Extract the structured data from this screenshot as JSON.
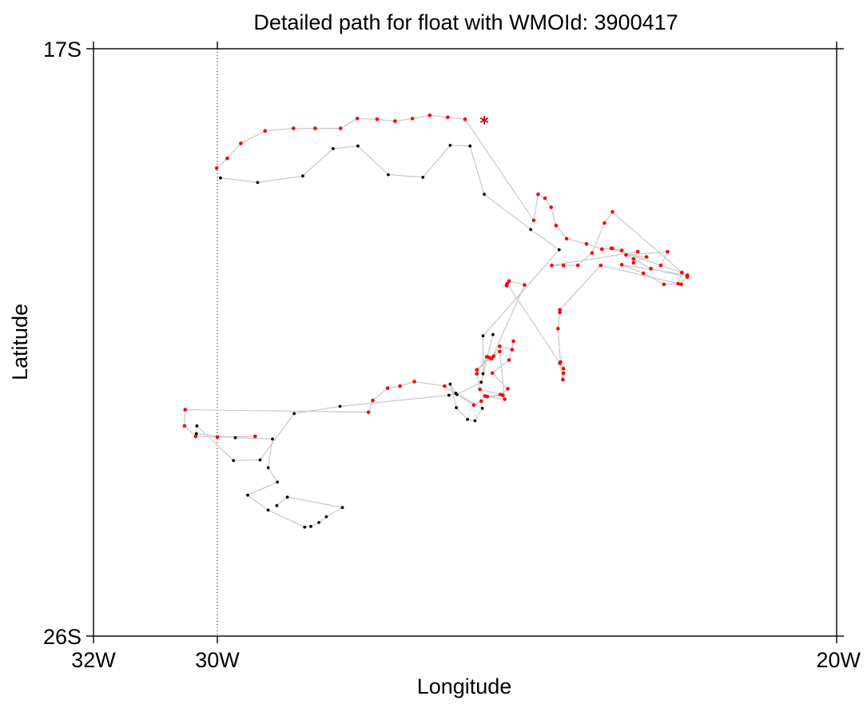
{
  "chart_data": {
    "type": "scatter",
    "title": "Detailed path for float with WMOId: 3900417",
    "xlabel": "Longitude",
    "ylabel": "Latitude",
    "xlim": [
      -32,
      -20
    ],
    "ylim": [
      -26,
      -17
    ],
    "x_ticks": [
      {
        "value": -32,
        "label": "32W"
      },
      {
        "value": -30,
        "label": "30W"
      },
      {
        "value": -20,
        "label": "20W"
      }
    ],
    "y_ticks": [
      {
        "value": -17,
        "label": "17S"
      },
      {
        "value": -26,
        "label": "26S"
      }
    ],
    "reference_line": {
      "lon": -30,
      "style": "dotted"
    },
    "grid": false,
    "path_color": "#c8c8c8",
    "series": [
      {
        "color": "#000000",
        "points": [
          [
            -29.95,
            -18.98
          ],
          [
            -29.35,
            -19.05
          ],
          [
            -28.62,
            -18.95
          ],
          [
            -28.13,
            -18.53
          ],
          [
            -27.73,
            -18.49
          ],
          [
            -27.24,
            -18.93
          ],
          [
            -26.68,
            -18.97
          ],
          [
            -26.24,
            -18.48
          ],
          [
            -25.92,
            -18.49
          ],
          [
            -25.69,
            -19.23
          ],
          [
            -24.94,
            -19.77
          ],
          [
            -24.48,
            -20.08
          ],
          [
            -25.71,
            -21.4
          ],
          [
            -25.71,
            -21.98
          ],
          [
            -25.55,
            -21.38
          ],
          [
            -25.74,
            -22.11
          ],
          [
            -26.13,
            -22.3
          ],
          [
            -26.24,
            -22.14
          ],
          [
            -26.14,
            -22.5
          ],
          [
            -25.96,
            -22.68
          ],
          [
            -25.84,
            -22.7
          ],
          [
            -25.72,
            -22.51
          ],
          [
            -26.15,
            -22.28
          ],
          [
            -26.26,
            -22.31
          ],
          [
            -28.02,
            -22.48
          ],
          [
            -28.76,
            -22.59
          ],
          [
            -29.31,
            -23.3
          ],
          [
            -29.74,
            -23.31
          ],
          [
            -30.33,
            -22.78
          ],
          [
            -30.34,
            -22.9
          ],
          [
            -29.71,
            -22.96
          ],
          [
            -29.11,
            -22.98
          ],
          [
            -29.18,
            -23.42
          ],
          [
            -29.03,
            -23.64
          ],
          [
            -29.51,
            -23.84
          ],
          [
            -29.18,
            -24.07
          ],
          [
            -28.59,
            -24.33
          ],
          [
            -28.49,
            -24.32
          ],
          [
            -28.36,
            -24.26
          ],
          [
            -28.24,
            -24.17
          ],
          [
            -27.98,
            -24.03
          ],
          [
            -28.87,
            -23.87
          ],
          [
            -29.04,
            -24.0
          ]
        ]
      },
      {
        "color": "#ff0000",
        "points": [
          [
            -30.01,
            -18.83
          ],
          [
            -29.84,
            -18.68
          ],
          [
            -29.62,
            -18.45
          ],
          [
            -29.23,
            -18.26
          ],
          [
            -28.77,
            -18.22
          ],
          [
            -28.42,
            -18.22
          ],
          [
            -28.01,
            -18.22
          ],
          [
            -27.74,
            -18.07
          ],
          [
            -27.42,
            -18.08
          ],
          [
            -27.13,
            -18.11
          ],
          [
            -26.85,
            -18.07
          ],
          [
            -26.57,
            -18.02
          ],
          [
            -26.28,
            -18.05
          ],
          [
            -26.0,
            -18.08
          ],
          [
            -24.89,
            -19.63
          ],
          [
            -24.82,
            -19.23
          ],
          [
            -24.71,
            -19.29
          ],
          [
            -24.61,
            -19.43
          ],
          [
            -24.53,
            -19.71
          ],
          [
            -24.36,
            -19.91
          ],
          [
            -24.04,
            -19.99
          ],
          [
            -23.79,
            -20.07
          ],
          [
            -23.62,
            -20.06
          ],
          [
            -23.47,
            -20.09
          ],
          [
            -23.28,
            -20.22
          ],
          [
            -23.0,
            -20.37
          ],
          [
            -22.41,
            -20.5
          ],
          [
            -23.62,
            -19.5
          ],
          [
            -23.75,
            -19.67
          ],
          [
            -23.95,
            -20.13
          ],
          [
            -24.18,
            -20.32
          ],
          [
            -24.41,
            -20.32
          ],
          [
            -24.6,
            -20.32
          ],
          [
            -23.21,
            -20.11
          ],
          [
            -23.28,
            -20.28
          ],
          [
            -23.07,
            -20.19
          ],
          [
            -23.4,
            -20.16
          ],
          [
            -22.73,
            -20.11
          ],
          [
            -22.84,
            -20.32
          ],
          [
            -23.64,
            -20.06
          ],
          [
            -22.5,
            -20.43
          ],
          [
            -22.56,
            -20.6
          ],
          [
            -22.79,
            -20.61
          ],
          [
            -23.12,
            -20.44
          ],
          [
            -23.47,
            -20.31
          ],
          [
            -22.41,
            -20.47
          ],
          [
            -22.51,
            -20.61
          ],
          [
            -23.81,
            -20.32
          ],
          [
            -24.47,
            -21.0
          ],
          [
            -24.47,
            -21.04
          ],
          [
            -24.5,
            -21.29
          ],
          [
            -24.46,
            -21.8
          ],
          [
            -24.41,
            -21.97
          ],
          [
            -24.42,
            -22.07
          ],
          [
            -24.47,
            -21.82
          ],
          [
            -24.41,
            -21.9
          ],
          [
            -25.32,
            -20.6
          ],
          [
            -25.33,
            -20.63
          ],
          [
            -25.29,
            -20.56
          ],
          [
            -25.04,
            -20.62
          ],
          [
            -25.57,
            -21.75
          ],
          [
            -25.44,
            -21.56
          ],
          [
            -25.24,
            -21.61
          ],
          [
            -25.22,
            -21.48
          ],
          [
            -25.29,
            -21.77
          ],
          [
            -25.56,
            -21.97
          ],
          [
            -25.31,
            -22.21
          ],
          [
            -25.43,
            -22.3
          ],
          [
            -25.64,
            -22.33
          ],
          [
            -25.39,
            -22.31
          ],
          [
            -25.76,
            -22.22
          ],
          [
            -25.81,
            -21.98
          ],
          [
            -25.65,
            -21.72
          ],
          [
            -25.61,
            -21.73
          ],
          [
            -25.81,
            -21.92
          ],
          [
            -25.54,
            -21.71
          ],
          [
            -25.44,
            -21.64
          ],
          [
            -25.36,
            -22.37
          ],
          [
            -25.68,
            -22.32
          ],
          [
            -25.74,
            -22.4
          ],
          [
            -25.86,
            -22.46
          ],
          [
            -26.33,
            -22.17
          ],
          [
            -26.82,
            -22.1
          ],
          [
            -27.05,
            -22.17
          ],
          [
            -27.25,
            -22.2
          ],
          [
            -27.49,
            -22.39
          ],
          [
            -27.56,
            -22.57
          ],
          [
            -30.52,
            -22.53
          ],
          [
            -30.53,
            -22.78
          ],
          [
            -30.35,
            -22.94
          ],
          [
            -30.0,
            -22.95
          ],
          [
            -29.39,
            -22.94
          ]
        ]
      }
    ],
    "end_marker": {
      "symbol": "*",
      "color": "#cc0000",
      "lon": -25.69,
      "lat": -18.12
    }
  }
}
